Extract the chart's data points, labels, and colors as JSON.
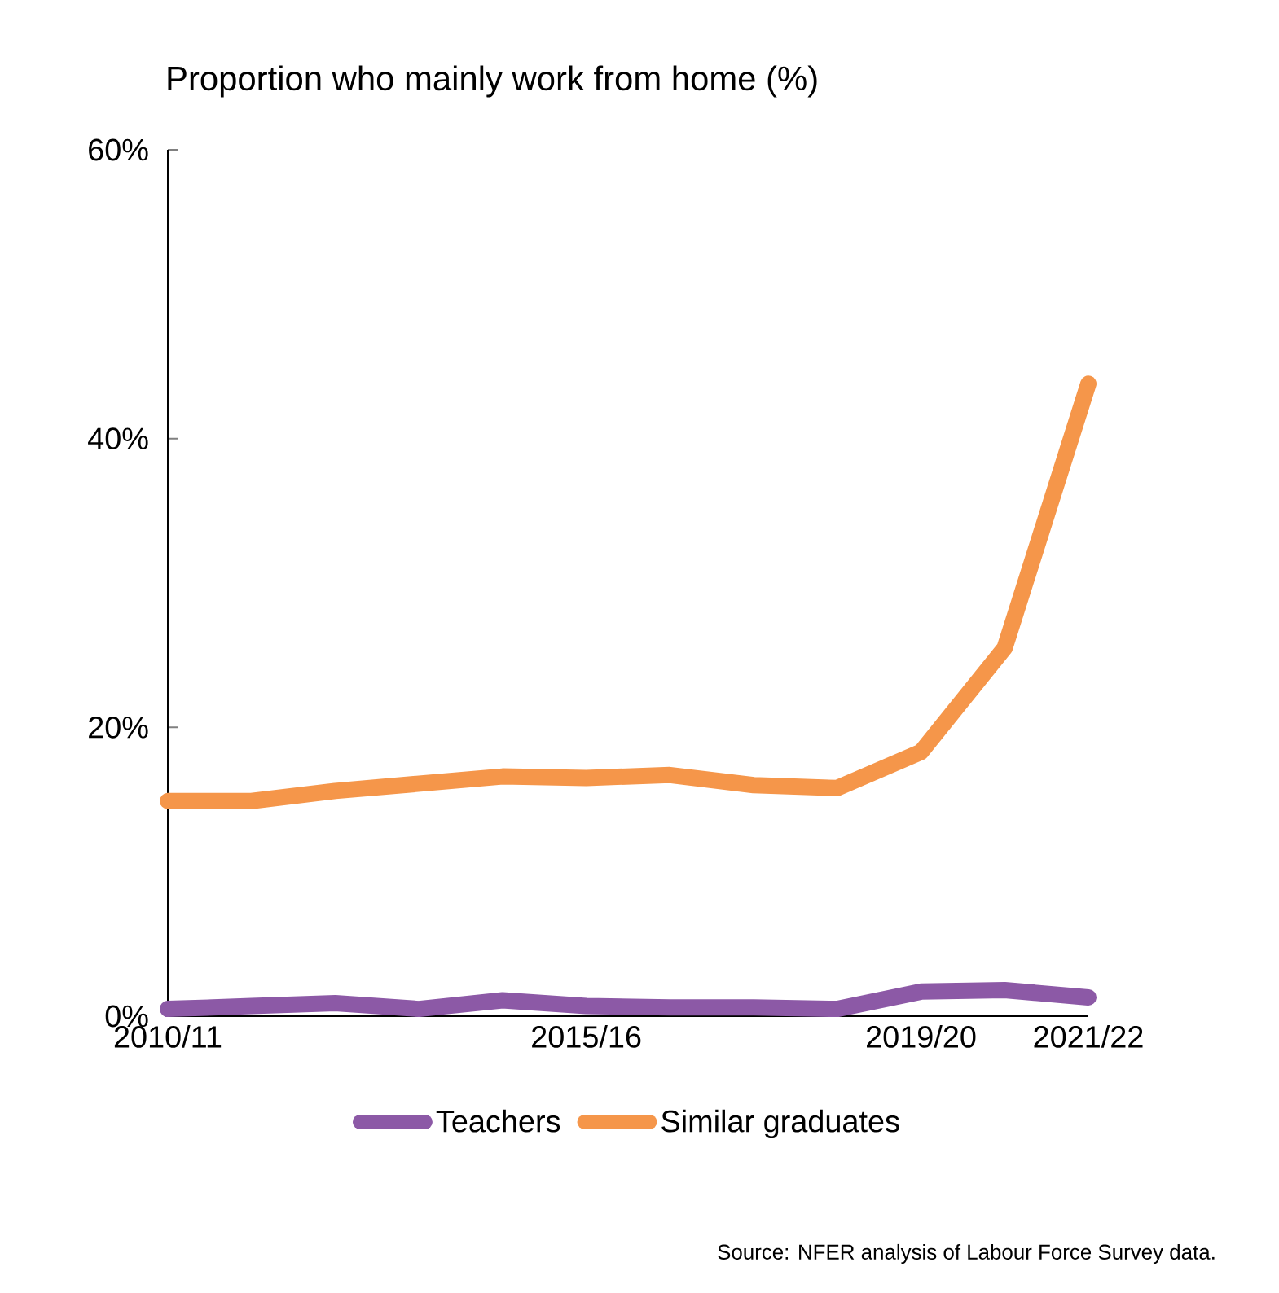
{
  "chart_data": {
    "type": "line",
    "title": "Proportion who mainly work from home (%)",
    "categories": [
      "2010/11",
      null,
      null,
      null,
      null,
      "2015/16",
      null,
      null,
      null,
      "2019/20",
      null,
      "2021/22"
    ],
    "series": [
      {
        "name": "Teachers",
        "color": "#8c59a6",
        "values": [
          0.5,
          0.7,
          0.9,
          0.5,
          1.1,
          0.7,
          0.6,
          0.6,
          0.5,
          1.7,
          1.8,
          1.3
        ]
      },
      {
        "name": "Similar graduates",
        "color": "#f5964a",
        "values": [
          14.9,
          14.9,
          15.6,
          16.1,
          16.6,
          16.5,
          16.7,
          16.0,
          15.8,
          18.3,
          25.5,
          43.8
        ]
      }
    ],
    "ylim": [
      0,
      60
    ],
    "yticks": [
      {
        "value": 0,
        "label": "0%"
      },
      {
        "value": 20,
        "label": "20%"
      },
      {
        "value": 40,
        "label": "40%"
      },
      {
        "value": 60,
        "label": "60%"
      }
    ],
    "grid": false,
    "legend": "bottom",
    "marker": "none",
    "line_style": "solid",
    "annotations": [
      "Source: NFER analysis of Labour Force Survey data."
    ]
  }
}
